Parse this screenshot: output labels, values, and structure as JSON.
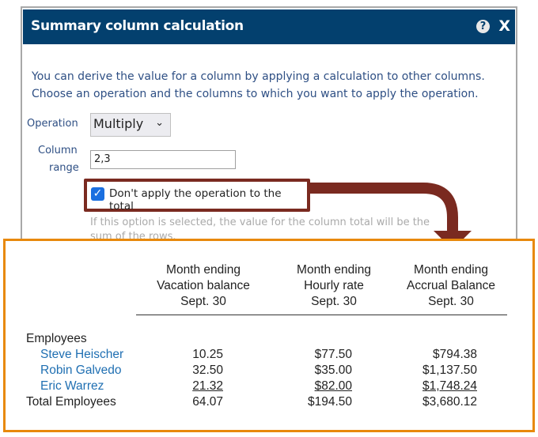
{
  "dialog": {
    "title": "Summary column calculation",
    "help_icon": "question-circle-icon",
    "close_label": "X",
    "description_line1": "You can derive the value for a column by applying a calculation to other columns.",
    "description_line2": "Choose an operation and the columns to which you want to apply the operation.",
    "operation_label": "Operation",
    "operation_value": "Multiply",
    "column_range_label_1": "Column",
    "column_range_label_2": "range",
    "column_range_value": "2,3",
    "checkbox_label": "Don't apply the operation to the total",
    "checkbox_checked": true,
    "hint_line1": "If this option is selected, the value for the column total will be the",
    "hint_line2": "sum of the rows."
  },
  "colors": {
    "header": "#03406e",
    "highlight": "#7a2a20",
    "frame": "#e8890c",
    "link": "#1f6fb2"
  },
  "table": {
    "columns": [
      {
        "line1": "Month ending",
        "line2": "Vacation balance",
        "line3": "Sept. 30"
      },
      {
        "line1": "Month ending",
        "line2": "Hourly rate",
        "line3": "Sept. 30"
      },
      {
        "line1": "Month ending",
        "line2": "Accrual Balance",
        "line3": "Sept. 30"
      }
    ],
    "group_label": "Employees",
    "rows": [
      {
        "name": "Steve Heischer",
        "values": [
          "10.25",
          "$77.50",
          "$794.38"
        ]
      },
      {
        "name": "Robin Galvedo",
        "values": [
          "32.50",
          "$35.00",
          "$1,137.50"
        ]
      },
      {
        "name": "Eric Warrez",
        "values": [
          "21.32",
          "$82.00",
          "$1,748.24"
        ]
      }
    ],
    "total": {
      "name": "Total Employees",
      "values": [
        "64.07",
        "$194.50",
        "$3,680.12"
      ]
    }
  }
}
